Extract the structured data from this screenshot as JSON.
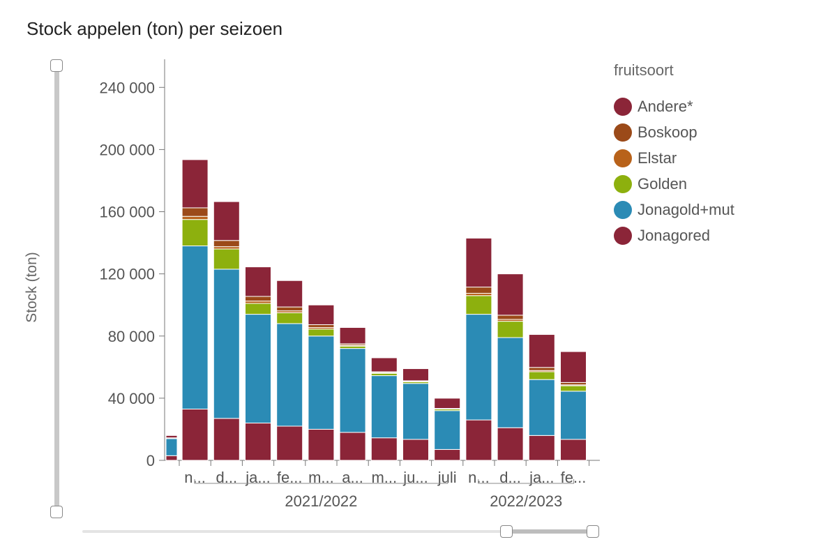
{
  "title": "Stock appelen (ton) per seizoen",
  "legend_title": "fruitsoort",
  "chart_data": {
    "type": "bar",
    "stacked": true,
    "title": "Stock appelen (ton) per seizoen",
    "ylabel": "Stock (ton)",
    "xlabel": "",
    "ylim": [
      0,
      250000
    ],
    "yticks": [
      0,
      40000,
      80000,
      120000,
      160000,
      200000,
      240000
    ],
    "ytick_labels": [
      "0",
      "40 000",
      "80 000",
      "120 000",
      "160 000",
      "200 000",
      "240 000"
    ],
    "categories": [
      "",
      "n...",
      "d...",
      "ja...",
      "fe...",
      "m...",
      "a...",
      "m...",
      "ju...",
      "juli",
      "n...",
      "d...",
      "ja...",
      "fe..."
    ],
    "groups": [
      {
        "label": "2021/2022",
        "from": 1,
        "to": 9
      },
      {
        "label": "2022/2023",
        "from": 10,
        "to": 13
      }
    ],
    "series": [
      {
        "name": "Jonagored",
        "color": "#8b2538",
        "values": [
          3000,
          33000,
          27000,
          24000,
          22000,
          20000,
          18000,
          14500,
          13500,
          7000,
          26000,
          21000,
          16000,
          13500
        ]
      },
      {
        "name": "Jonagold+mut",
        "color": "#2b8bb5",
        "values": [
          11000,
          105000,
          96000,
          70000,
          66000,
          60000,
          54000,
          40000,
          36000,
          25000,
          68000,
          58000,
          36000,
          31000
        ]
      },
      {
        "name": "Golden",
        "color": "#8db00e",
        "values": [
          0,
          17000,
          13000,
          7000,
          7000,
          4500,
          1500,
          1500,
          1000,
          1000,
          12000,
          10500,
          5000,
          3500
        ]
      },
      {
        "name": "Elstar",
        "color": "#b8621a",
        "values": [
          0,
          2000,
          1500,
          1500,
          1200,
          1000,
          600,
          500,
          400,
          200,
          1500,
          1200,
          800,
          600
        ]
      },
      {
        "name": "Boskoop",
        "color": "#9b4a19",
        "values": [
          500,
          5500,
          4000,
          3000,
          2500,
          1800,
          900,
          500,
          300,
          200,
          4000,
          2700,
          2000,
          1500
        ]
      },
      {
        "name": "Andere*",
        "color": "#8b2538",
        "values": [
          1500,
          31000,
          25000,
          19000,
          17000,
          12700,
          10500,
          9000,
          7800,
          6600,
          31500,
          26600,
          21200,
          19900
        ]
      }
    ]
  }
}
